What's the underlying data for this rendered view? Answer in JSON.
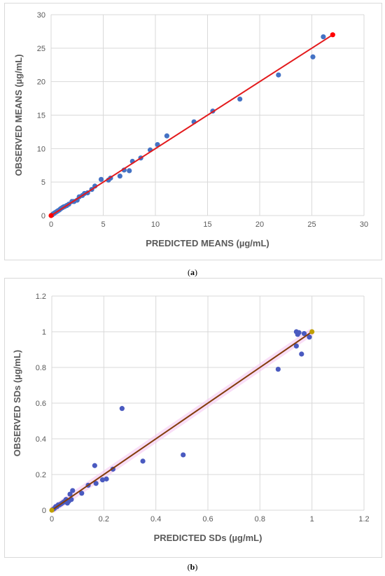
{
  "chart_data": [
    {
      "type": "scatter",
      "xlabel": "PREDICTED MEANS (µg/mL)",
      "ylabel": "OBSERVED MEANS (µg/mL)",
      "xlim": [
        0,
        30
      ],
      "ylim": [
        0,
        30
      ],
      "xticks": [
        "0",
        "5",
        "10",
        "15",
        "20",
        "25",
        "30"
      ],
      "yticks": [
        "0",
        "5",
        "10",
        "15",
        "20",
        "25",
        "30"
      ],
      "grid": true,
      "colors": {
        "points": "#4472C4",
        "line": "#E31A1C",
        "line_markers": "#FF0000"
      },
      "series": [
        {
          "points": [
            [
              0.1,
              0.1
            ],
            [
              0.2,
              0.25
            ],
            [
              0.3,
              0.35
            ],
            [
              0.4,
              0.45
            ],
            [
              0.5,
              0.55
            ],
            [
              0.6,
              0.65
            ],
            [
              0.7,
              0.75
            ],
            [
              0.8,
              0.85
            ],
            [
              0.9,
              1.0
            ],
            [
              1.0,
              1.1
            ],
            [
              1.1,
              1.2
            ],
            [
              1.2,
              1.3
            ],
            [
              1.3,
              1.35
            ],
            [
              1.5,
              1.5
            ],
            [
              1.7,
              1.7
            ],
            [
              2.0,
              2.1
            ],
            [
              2.2,
              2.1
            ],
            [
              2.5,
              2.3
            ],
            [
              2.7,
              2.8
            ],
            [
              3.0,
              3.0
            ],
            [
              3.2,
              3.3
            ],
            [
              3.5,
              3.4
            ],
            [
              3.9,
              3.9
            ],
            [
              4.2,
              4.4
            ],
            [
              4.8,
              5.4
            ],
            [
              5.5,
              5.3
            ],
            [
              5.7,
              5.6
            ],
            [
              6.6,
              5.9
            ],
            [
              7.0,
              6.8
            ],
            [
              7.5,
              6.7
            ],
            [
              7.8,
              8.1
            ],
            [
              8.6,
              8.6
            ],
            [
              9.5,
              9.8
            ],
            [
              10.2,
              10.6
            ],
            [
              11.1,
              11.9
            ],
            [
              13.7,
              14.0
            ],
            [
              15.5,
              15.6
            ],
            [
              18.1,
              17.4
            ],
            [
              21.8,
              21.0
            ],
            [
              25.1,
              23.7
            ],
            [
              26.1,
              26.7
            ]
          ]
        }
      ],
      "fit_line": [
        [
          0,
          0
        ],
        [
          27,
          27
        ]
      ]
    },
    {
      "type": "scatter",
      "xlabel": "PREDICTED SDs (µg/mL)",
      "ylabel": "OBSERVED SDs (µg/mL)",
      "xlim": [
        0,
        1.2
      ],
      "ylim": [
        0,
        1.2
      ],
      "xticks": [
        "0",
        "0.2",
        "0.4",
        "0.6",
        "0.8",
        "1",
        "1.2"
      ],
      "yticks": [
        "0",
        "0.2",
        "0.4",
        "0.6",
        "0.8",
        "1",
        "1.2"
      ],
      "grid": true,
      "colors": {
        "points": "#4A5AC0",
        "line": "#833C0B",
        "highlight": "#F4C2F0",
        "end_markers": "#C0A000"
      },
      "series": [
        {
          "points": [
            [
              0.005,
              0.005
            ],
            [
              0.01,
              0.01
            ],
            [
              0.015,
              0.02
            ],
            [
              0.02,
              0.02
            ],
            [
              0.025,
              0.03
            ],
            [
              0.03,
              0.03
            ],
            [
              0.035,
              0.035
            ],
            [
              0.04,
              0.04
            ],
            [
              0.045,
              0.045
            ],
            [
              0.05,
              0.05
            ],
            [
              0.055,
              0.06
            ],
            [
              0.06,
              0.04
            ],
            [
              0.065,
              0.05
            ],
            [
              0.07,
              0.09
            ],
            [
              0.075,
              0.06
            ],
            [
              0.08,
              0.11
            ],
            [
              0.115,
              0.095
            ],
            [
              0.14,
              0.14
            ],
            [
              0.165,
              0.25
            ],
            [
              0.17,
              0.15
            ],
            [
              0.195,
              0.17
            ],
            [
              0.21,
              0.175
            ],
            [
              0.235,
              0.23
            ],
            [
              0.27,
              0.57
            ],
            [
              0.35,
              0.275
            ],
            [
              0.505,
              0.31
            ],
            [
              0.87,
              0.79
            ],
            [
              0.94,
              0.92
            ],
            [
              0.94,
              1.0
            ],
            [
              0.945,
              0.985
            ],
            [
              0.95,
              0.995
            ],
            [
              0.96,
              0.875
            ],
            [
              0.97,
              0.99
            ],
            [
              0.99,
              0.97
            ]
          ]
        }
      ],
      "fit_line": [
        [
          0,
          0
        ],
        [
          1,
          1
        ]
      ]
    }
  ],
  "captions": {
    "a": {
      "open": "(",
      "label": "a",
      "close": ")"
    },
    "b": {
      "open": "(",
      "label": "b",
      "close": ")"
    }
  }
}
